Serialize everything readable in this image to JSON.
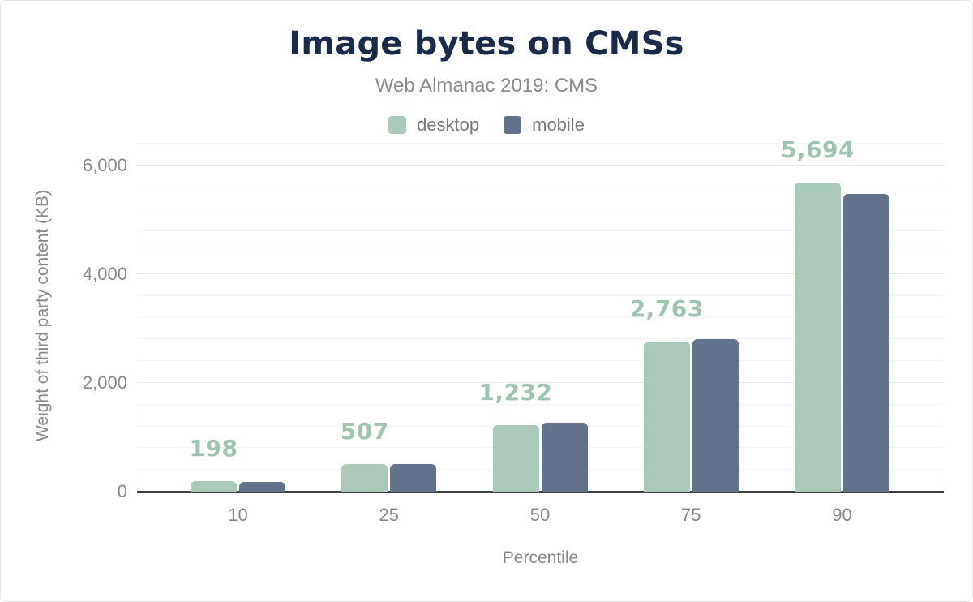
{
  "colors": {
    "navy": "#1a2a4a",
    "subtitle_gray": "#8b8b8d",
    "tick_gray": "#86888b",
    "legend_gray": "#77797c",
    "desktop_green": "#a9cab8",
    "mobile_slate": "#62718c",
    "label_green": "#9cc4ae",
    "grid_major": "#e9e9e9",
    "grid_minor": "#f4f4f4",
    "axis_dark": "#3d3f42",
    "card_border": "#e3e3e3"
  },
  "chart_data": {
    "type": "bar",
    "title": "Image bytes on CMSs",
    "subtitle": "Web Almanac 2019: CMS",
    "xlabel": "Percentile",
    "ylabel": "Weight of third party content (KB)",
    "categories": [
      "10",
      "25",
      "50",
      "75",
      "90"
    ],
    "series": [
      {
        "name": "desktop",
        "color": "#a9cab8",
        "values": [
          198,
          507,
          1232,
          2763,
          5694
        ],
        "value_labels": [
          "198",
          "507",
          "1,232",
          "2,763",
          "5,694"
        ],
        "labels_shown": true
      },
      {
        "name": "mobile",
        "color": "#62718c",
        "values": [
          185,
          510,
          1270,
          2805,
          5480
        ],
        "estimated_from_pixels": true,
        "labels_shown": false
      }
    ],
    "yticks": [
      {
        "value": 0,
        "label": "0"
      },
      {
        "value": 2000,
        "label": "2,000"
      },
      {
        "value": 4000,
        "label": "4,000"
      },
      {
        "value": 6000,
        "label": "6,000"
      }
    ],
    "ylim": [
      0,
      6525
    ],
    "minor_grid_step": 400,
    "grid": "horizontal",
    "legend_position": "top"
  }
}
